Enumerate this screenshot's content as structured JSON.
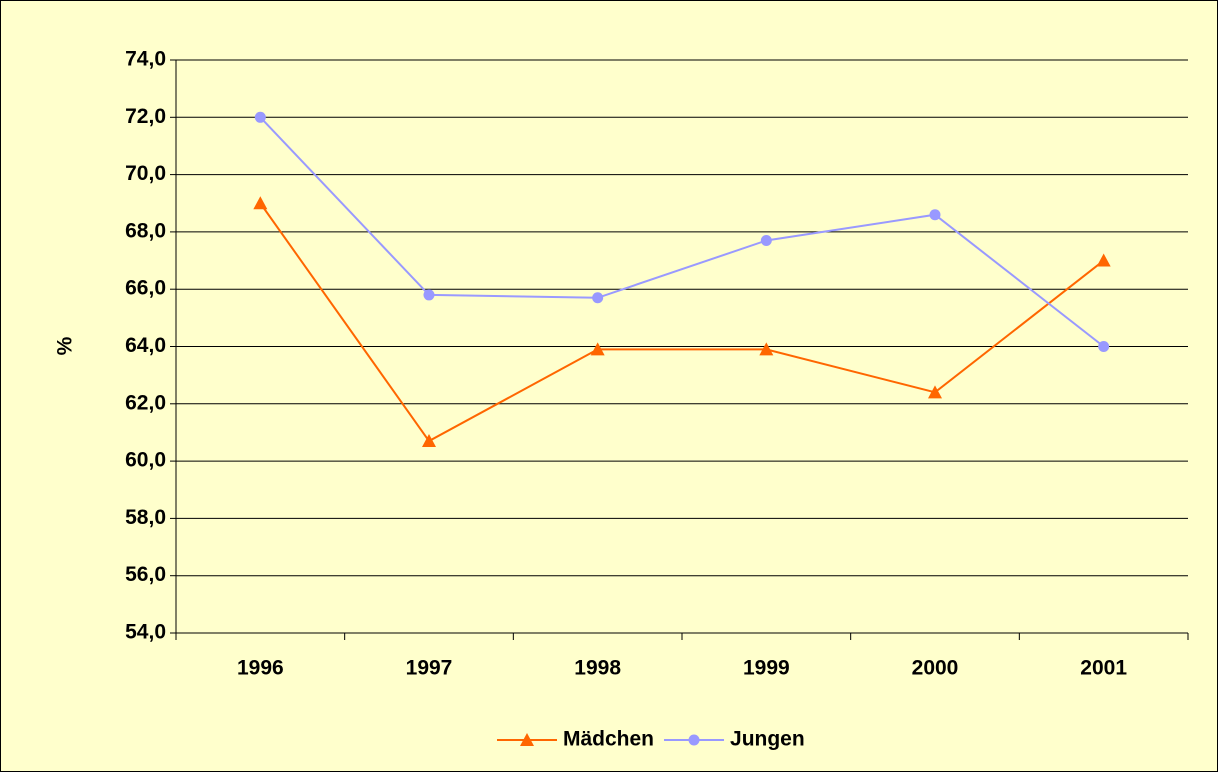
{
  "chart_data": {
    "type": "line",
    "ylabel": "%",
    "categories": [
      "1996",
      "1997",
      "1998",
      "1999",
      "2000",
      "2001"
    ],
    "series": [
      {
        "name": "Mädchen",
        "color": "#ff6600",
        "marker": "triangle",
        "values": [
          69.0,
          60.7,
          63.9,
          63.9,
          62.4,
          67.0
        ]
      },
      {
        "name": "Jungen",
        "color": "#9999ff",
        "marker": "circle",
        "values": [
          72.0,
          65.8,
          65.7,
          67.7,
          68.6,
          64.0
        ]
      }
    ],
    "ylim": [
      54,
      74
    ],
    "yticks": [
      {
        "value": 54,
        "label": "54,0"
      },
      {
        "value": 56,
        "label": "56,0"
      },
      {
        "value": 58,
        "label": "58,0"
      },
      {
        "value": 60,
        "label": "60,0"
      },
      {
        "value": 62,
        "label": "62,0"
      },
      {
        "value": 64,
        "label": "64,0"
      },
      {
        "value": 66,
        "label": "66,0"
      },
      {
        "value": 68,
        "label": "68,0"
      },
      {
        "value": 70,
        "label": "70,0"
      },
      {
        "value": 72,
        "label": "72,0"
      },
      {
        "value": 74,
        "label": "74,0"
      }
    ],
    "grid": true,
    "legend": "bottom",
    "background": "#ffffcc"
  }
}
